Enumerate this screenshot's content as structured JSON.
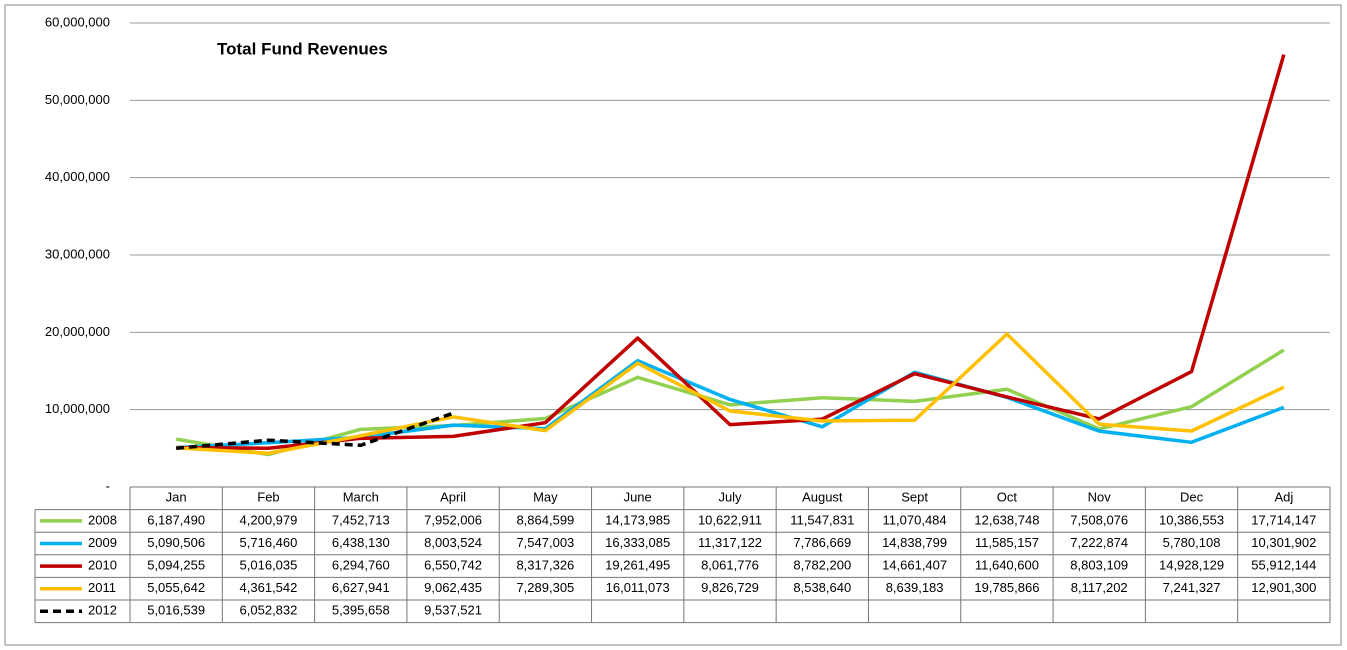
{
  "chart_data": {
    "type": "line",
    "title": "Total Fund Revenues",
    "categories": [
      "Jan",
      "Feb",
      "March",
      "April",
      "May",
      "June",
      "July",
      "August",
      "Sept",
      "Oct",
      "Nov",
      "Dec",
      "Adj"
    ],
    "ylim": [
      0,
      60000000
    ],
    "yticks": [
      {
        "value": 0,
        "label": "-"
      },
      {
        "value": 10000000,
        "label": "10,000,000"
      },
      {
        "value": 20000000,
        "label": "20,000,000"
      },
      {
        "value": 30000000,
        "label": "30,000,000"
      },
      {
        "value": 40000000,
        "label": "40,000,000"
      },
      {
        "value": 50000000,
        "label": "50,000,000"
      },
      {
        "value": 60000000,
        "label": "60,000,000"
      }
    ],
    "grid": true,
    "series": [
      {
        "name": "2008",
        "color": "#92d050",
        "line_style": "solid",
        "values": [
          6187490,
          4200979,
          7452713,
          7952006,
          8864599,
          14173985,
          10622911,
          11547831,
          11070484,
          12638748,
          7508076,
          10386553,
          17714147
        ],
        "value_labels": [
          "6,187,490",
          "4,200,979",
          "7,452,713",
          "7,952,006",
          "8,864,599",
          "14,173,985",
          "10,622,911",
          "11,547,831",
          "11,070,484",
          "12,638,748",
          "7,508,076",
          "10,386,553",
          "17,714,147"
        ]
      },
      {
        "name": "2009",
        "color": "#00b0f0",
        "line_style": "solid",
        "values": [
          5090506,
          5716460,
          6438130,
          8003524,
          7547003,
          16333085,
          11317122,
          7786669,
          14838799,
          11585157,
          7222874,
          5780108,
          10301902
        ],
        "value_labels": [
          "5,090,506",
          "5,716,460",
          "6,438,130",
          "8,003,524",
          "7,547,003",
          "16,333,085",
          "11,317,122",
          "7,786,669",
          "14,838,799",
          "11,585,157",
          "7,222,874",
          "5,780,108",
          "10,301,902"
        ]
      },
      {
        "name": "2010",
        "color": "#c00000",
        "line_style": "solid",
        "values": [
          5094255,
          5016035,
          6294760,
          6550742,
          8317326,
          19261495,
          8061776,
          8782200,
          14661407,
          11640600,
          8803109,
          14928129,
          55912144
        ],
        "value_labels": [
          "5,094,255",
          "5,016,035",
          "6,294,760",
          "6,550,742",
          "8,317,326",
          "19,261,495",
          "8,061,776",
          "8,782,200",
          "14,661,407",
          "11,640,600",
          "8,803,109",
          "14,928,129",
          "55,912,144"
        ]
      },
      {
        "name": "2011",
        "color": "#ffc000",
        "line_style": "solid",
        "values": [
          5055642,
          4361542,
          6627941,
          9062435,
          7289305,
          16011073,
          9826729,
          8538640,
          8639183,
          19785866,
          8117202,
          7241327,
          12901300
        ],
        "value_labels": [
          "5,055,642",
          "4,361,542",
          "6,627,941",
          "9,062,435",
          "7,289,305",
          "16,011,073",
          "9,826,729",
          "8,538,640",
          "8,639,183",
          "19,785,866",
          "8,117,202",
          "7,241,327",
          "12,901,300"
        ]
      },
      {
        "name": "2012",
        "color": "#000000",
        "line_style": "dashed",
        "values": [
          5016539,
          6052832,
          5395658,
          9537521,
          null,
          null,
          null,
          null,
          null,
          null,
          null,
          null,
          null
        ],
        "value_labels": [
          "5,016,539",
          "6,052,832",
          "5,395,658",
          "9,537,521",
          null,
          null,
          null,
          null,
          null,
          null,
          null,
          null,
          null
        ]
      }
    ]
  }
}
